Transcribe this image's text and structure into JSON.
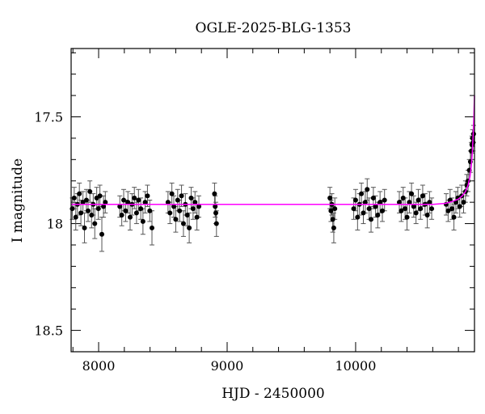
{
  "chart_data": {
    "type": "scatter",
    "title": "OGLE-2025-BLG-1353",
    "xlabel": "HJD - 2450000",
    "ylabel": "I magnitude",
    "xlim": [
      7786,
      10925
    ],
    "ylim": [
      18.6,
      17.18
    ],
    "y_inverted": true,
    "grid": false,
    "x_ticks": [
      8000,
      9000,
      10000
    ],
    "x_tick_labels": [
      "8000",
      "9000",
      "10000"
    ],
    "x_minor_step": 200,
    "y_ticks": [
      17.5,
      18,
      18.5
    ],
    "y_tick_labels": [
      "17.5",
      "18",
      "18.5"
    ],
    "y_minor_step": 0.1,
    "colors": {
      "points": "#000000",
      "errorbars": "#555555",
      "model": "#ff00ff"
    },
    "points": [
      [
        7795,
        17.93,
        0.05
      ],
      [
        7810,
        17.88,
        0.05
      ],
      [
        7822,
        17.97,
        0.06
      ],
      [
        7835,
        17.91,
        0.05
      ],
      [
        7850,
        17.86,
        0.05
      ],
      [
        7862,
        17.95,
        0.06
      ],
      [
        7878,
        17.9,
        0.05
      ],
      [
        7890,
        18.02,
        0.07
      ],
      [
        7905,
        17.89,
        0.05
      ],
      [
        7918,
        17.94,
        0.05
      ],
      [
        7932,
        17.85,
        0.05
      ],
      [
        7945,
        17.96,
        0.06
      ],
      [
        7958,
        17.91,
        0.05
      ],
      [
        7970,
        18.0,
        0.07
      ],
      [
        7985,
        17.88,
        0.05
      ],
      [
        7998,
        17.93,
        0.05
      ],
      [
        8010,
        17.87,
        0.05
      ],
      [
        8025,
        18.05,
        0.08
      ],
      [
        8038,
        17.92,
        0.05
      ],
      [
        8052,
        17.9,
        0.05
      ],
      [
        8165,
        17.92,
        0.05
      ],
      [
        8180,
        17.96,
        0.05
      ],
      [
        8195,
        17.89,
        0.05
      ],
      [
        8210,
        17.94,
        0.05
      ],
      [
        8228,
        17.9,
        0.05
      ],
      [
        8245,
        17.97,
        0.06
      ],
      [
        8260,
        17.91,
        0.05
      ],
      [
        8278,
        17.88,
        0.05
      ],
      [
        8295,
        17.95,
        0.05
      ],
      [
        8310,
        17.89,
        0.05
      ],
      [
        8328,
        17.93,
        0.05
      ],
      [
        8345,
        17.99,
        0.06
      ],
      [
        8362,
        17.9,
        0.05
      ],
      [
        8380,
        17.87,
        0.05
      ],
      [
        8398,
        17.94,
        0.05
      ],
      [
        8415,
        18.02,
        0.08
      ],
      [
        8540,
        17.9,
        0.05
      ],
      [
        8555,
        17.95,
        0.05
      ],
      [
        8570,
        17.86,
        0.05
      ],
      [
        8585,
        17.92,
        0.05
      ],
      [
        8600,
        17.98,
        0.06
      ],
      [
        8615,
        17.89,
        0.05
      ],
      [
        8630,
        17.94,
        0.05
      ],
      [
        8645,
        17.87,
        0.05
      ],
      [
        8660,
        18.0,
        0.06
      ],
      [
        8675,
        17.91,
        0.05
      ],
      [
        8690,
        17.96,
        0.05
      ],
      [
        8705,
        18.02,
        0.07
      ],
      [
        8720,
        17.88,
        0.05
      ],
      [
        8735,
        17.93,
        0.05
      ],
      [
        8750,
        17.9,
        0.05
      ],
      [
        8765,
        17.97,
        0.06
      ],
      [
        8780,
        17.92,
        0.05
      ],
      [
        8902,
        17.86,
        0.05
      ],
      [
        8907,
        17.92,
        0.05
      ],
      [
        8912,
        17.95,
        0.05
      ],
      [
        8917,
        18.0,
        0.06
      ],
      [
        9800,
        17.88,
        0.05
      ],
      [
        9808,
        17.94,
        0.05
      ],
      [
        9815,
        17.91,
        0.05
      ],
      [
        9822,
        17.98,
        0.06
      ],
      [
        9830,
        18.02,
        0.07
      ],
      [
        9838,
        17.93,
        0.05
      ],
      [
        9985,
        17.93,
        0.05
      ],
      [
        10000,
        17.89,
        0.05
      ],
      [
        10015,
        17.97,
        0.06
      ],
      [
        10030,
        17.91,
        0.05
      ],
      [
        10045,
        17.86,
        0.05
      ],
      [
        10060,
        17.95,
        0.05
      ],
      [
        10075,
        17.9,
        0.05
      ],
      [
        10090,
        17.84,
        0.05
      ],
      [
        10105,
        17.93,
        0.05
      ],
      [
        10120,
        17.98,
        0.06
      ],
      [
        10138,
        17.88,
        0.05
      ],
      [
        10155,
        17.92,
        0.05
      ],
      [
        10172,
        17.96,
        0.06
      ],
      [
        10190,
        17.9,
        0.05
      ],
      [
        10208,
        17.94,
        0.05
      ],
      [
        10225,
        17.89,
        0.05
      ],
      [
        10340,
        17.9,
        0.05
      ],
      [
        10355,
        17.94,
        0.05
      ],
      [
        10370,
        17.88,
        0.05
      ],
      [
        10385,
        17.93,
        0.05
      ],
      [
        10400,
        17.97,
        0.06
      ],
      [
        10418,
        17.9,
        0.05
      ],
      [
        10435,
        17.86,
        0.05
      ],
      [
        10452,
        17.92,
        0.05
      ],
      [
        10470,
        17.95,
        0.05
      ],
      [
        10488,
        17.89,
        0.05
      ],
      [
        10505,
        17.93,
        0.05
      ],
      [
        10522,
        17.87,
        0.05
      ],
      [
        10540,
        17.91,
        0.05
      ],
      [
        10558,
        17.96,
        0.06
      ],
      [
        10575,
        17.9,
        0.05
      ],
      [
        10592,
        17.93,
        0.05
      ],
      [
        10705,
        17.91,
        0.05
      ],
      [
        10720,
        17.94,
        0.05
      ],
      [
        10735,
        17.89,
        0.05
      ],
      [
        10750,
        17.93,
        0.05
      ],
      [
        10765,
        17.97,
        0.06
      ],
      [
        10780,
        17.9,
        0.05
      ],
      [
        10795,
        17.88,
        0.05
      ],
      [
        10810,
        17.92,
        0.05
      ],
      [
        10825,
        17.87,
        0.05
      ],
      [
        10840,
        17.9,
        0.05
      ],
      [
        10855,
        17.85,
        0.05
      ],
      [
        10865,
        17.82,
        0.05
      ],
      [
        10875,
        17.8,
        0.05
      ],
      [
        10885,
        17.75,
        0.05
      ],
      [
        10893,
        17.71,
        0.05
      ],
      [
        10900,
        17.66,
        0.04
      ],
      [
        10905,
        17.63,
        0.04
      ],
      [
        10910,
        17.6,
        0.04
      ],
      [
        10914,
        17.62,
        0.04
      ],
      [
        10918,
        17.58,
        0.04
      ]
    ],
    "model": [
      [
        7786,
        17.91
      ],
      [
        10600,
        17.91
      ],
      [
        10700,
        17.905
      ],
      [
        10760,
        17.895
      ],
      [
        10800,
        17.885
      ],
      [
        10830,
        17.87
      ],
      [
        10855,
        17.85
      ],
      [
        10875,
        17.82
      ],
      [
        10890,
        17.78
      ],
      [
        10900,
        17.73
      ],
      [
        10908,
        17.67
      ],
      [
        10915,
        17.58
      ],
      [
        10920,
        17.5
      ],
      [
        10925,
        17.4
      ]
    ]
  }
}
